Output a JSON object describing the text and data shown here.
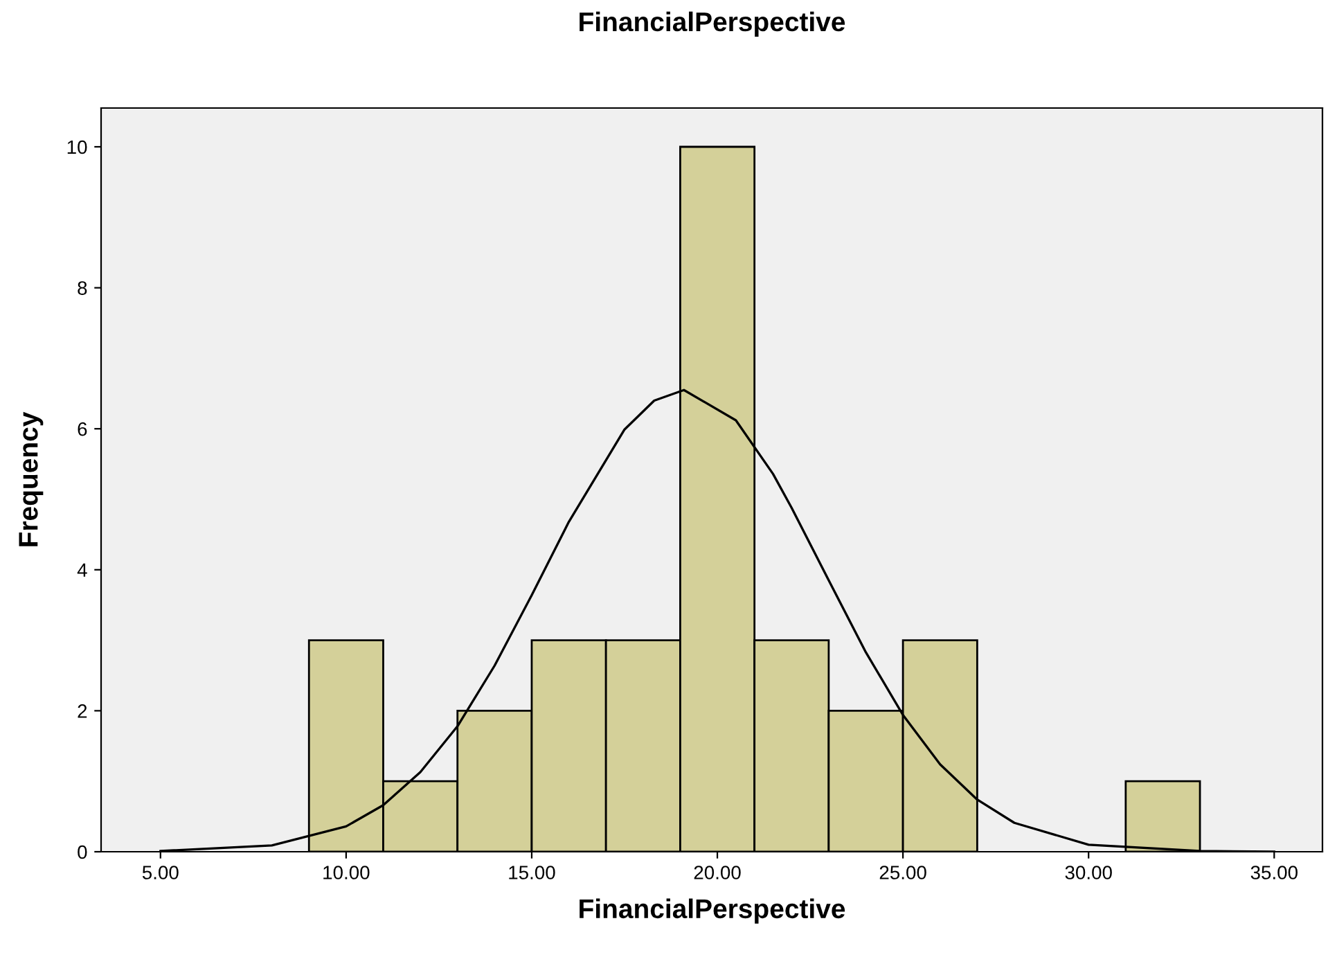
{
  "chart_data": {
    "type": "histogram",
    "title": "FinancialPerspective",
    "xlabel": "FinancialPerspective",
    "ylabel": "Frequency",
    "series": [
      {
        "type": "histogram",
        "bins": [
          9,
          11,
          13,
          15,
          17,
          19,
          21,
          23,
          25,
          27,
          29,
          31,
          33
        ],
        "values": [
          3,
          1,
          2,
          3,
          3,
          10,
          3,
          2,
          3,
          0,
          0,
          1
        ],
        "color": "#d4d099"
      },
      {
        "type": "line",
        "x": [
          5,
          8,
          10,
          11,
          12,
          13,
          14,
          15,
          16,
          17.5,
          18.3,
          19.1,
          20.5,
          21.5,
          22,
          23,
          24,
          25,
          26,
          27,
          28,
          30,
          33,
          35
        ],
        "values": [
          0.01,
          0.09,
          0.36,
          0.66,
          1.13,
          1.78,
          2.64,
          3.64,
          4.68,
          5.99,
          6.4,
          6.55,
          6.12,
          5.36,
          4.88,
          3.85,
          2.83,
          1.94,
          1.24,
          0.74,
          0.41,
          0.1,
          0.01,
          0
        ],
        "color": "#000000"
      }
    ],
    "xlim": [
      3.4,
      36.3
    ],
    "ylim": [
      0,
      10.55
    ],
    "xticks": [
      {
        "value": 5,
        "label": "5.00"
      },
      {
        "value": 10,
        "label": "10.00"
      },
      {
        "value": 15,
        "label": "15.00"
      },
      {
        "value": 20,
        "label": "20.00"
      },
      {
        "value": 25,
        "label": "25.00"
      },
      {
        "value": 30,
        "label": "30.00"
      },
      {
        "value": 35,
        "label": "35.00"
      }
    ],
    "yticks": [
      0,
      2,
      4,
      6,
      8,
      10
    ],
    "grid": false,
    "legend": false
  }
}
